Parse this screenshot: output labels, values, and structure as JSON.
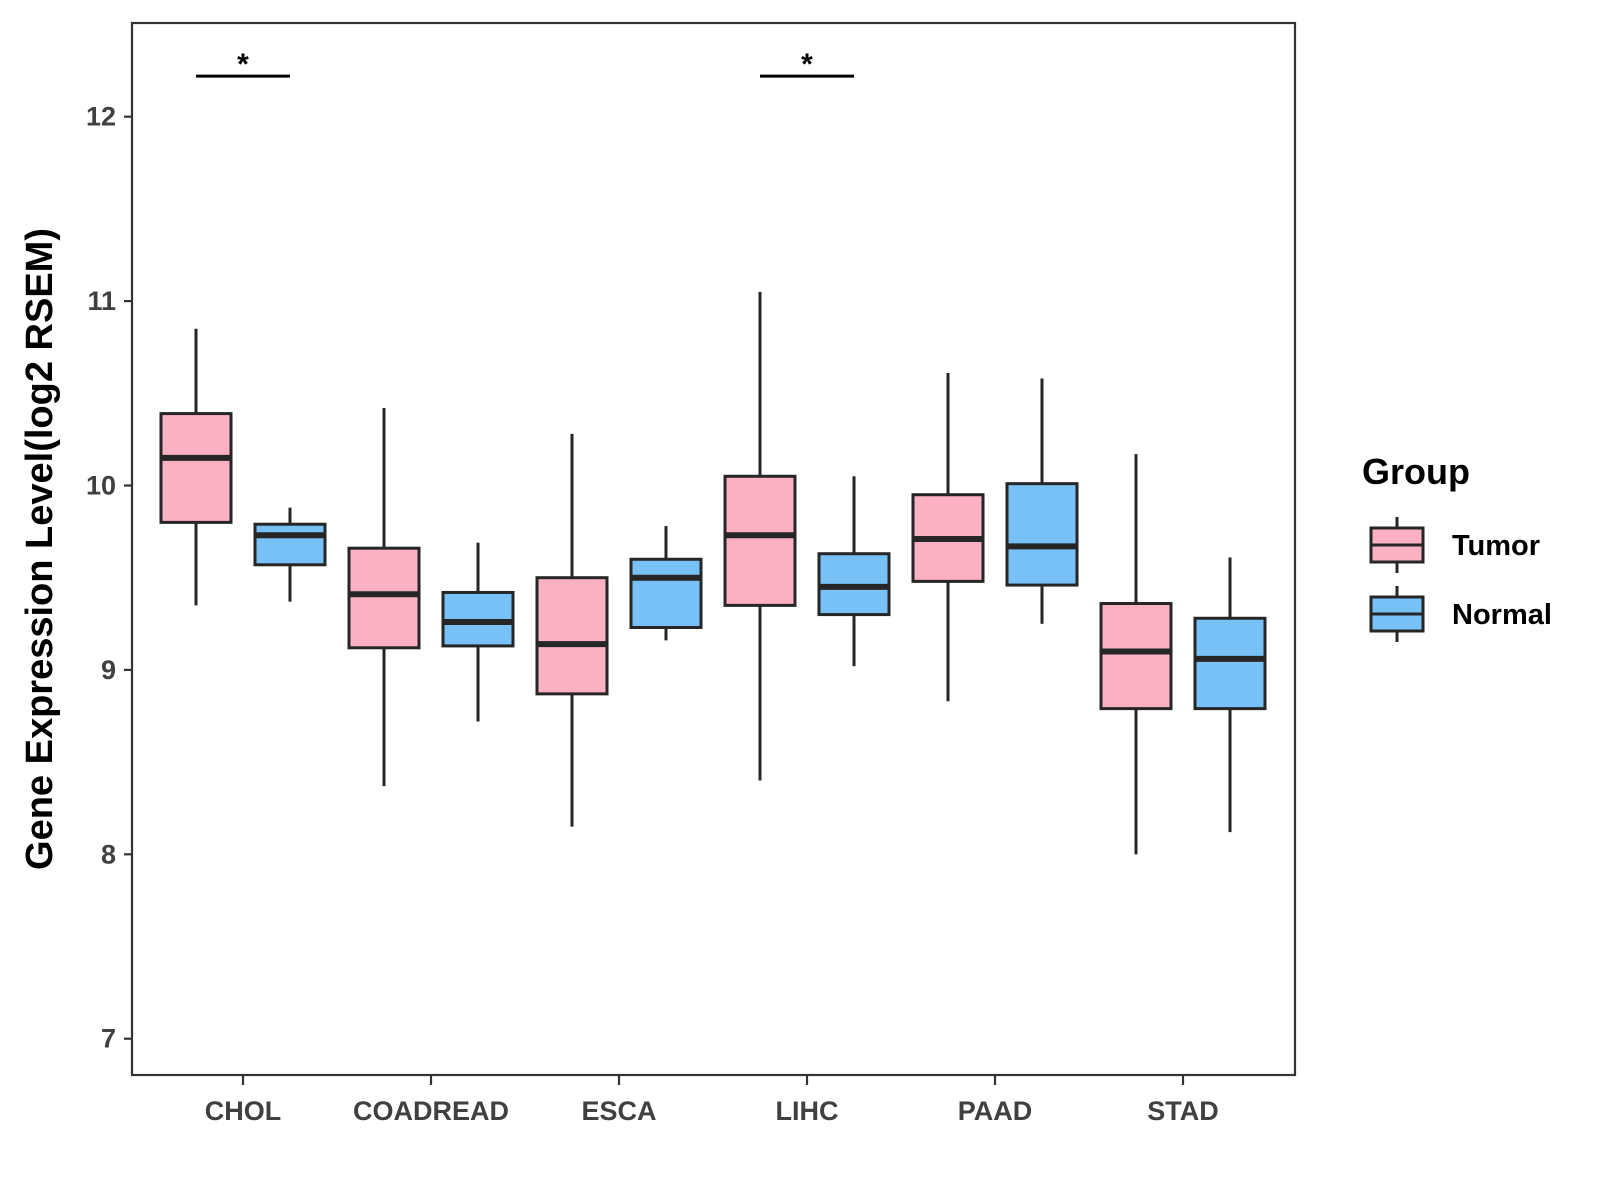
{
  "chart_data": {
    "type": "boxplot",
    "ylabel": "Gene Expression Level(log2 RSEM)",
    "xlabel": "",
    "ylim": [
      6.8,
      12.5
    ],
    "yticks": [
      7,
      8,
      9,
      10,
      11,
      12
    ],
    "categories": [
      "CHOL",
      "COADREAD",
      "ESCA",
      "LIHC",
      "PAAD",
      "STAD"
    ],
    "legend": {
      "title": "Group",
      "position": "right",
      "entries": [
        {
          "name": "Tumor",
          "color": "#FBB1C3"
        },
        {
          "name": "Normal",
          "color": "#78C1F7"
        }
      ]
    },
    "series": [
      {
        "name": "Tumor",
        "color": "#FBB1C3",
        "boxes": [
          {
            "min": 9.35,
            "q1": 9.8,
            "median": 10.15,
            "q3": 10.39,
            "max": 10.85
          },
          {
            "min": 8.37,
            "q1": 9.12,
            "median": 9.41,
            "q3": 9.66,
            "max": 10.42
          },
          {
            "min": 8.15,
            "q1": 8.87,
            "median": 9.14,
            "q3": 9.5,
            "max": 10.28
          },
          {
            "min": 8.4,
            "q1": 9.35,
            "median": 9.73,
            "q3": 10.05,
            "max": 11.05
          },
          {
            "min": 8.83,
            "q1": 9.48,
            "median": 9.71,
            "q3": 9.95,
            "max": 10.61
          },
          {
            "min": 8.0,
            "q1": 8.79,
            "median": 9.1,
            "q3": 9.36,
            "max": 10.17
          }
        ]
      },
      {
        "name": "Normal",
        "color": "#78C1F7",
        "boxes": [
          {
            "min": 9.37,
            "q1": 9.57,
            "median": 9.73,
            "q3": 9.79,
            "max": 9.88
          },
          {
            "min": 8.72,
            "q1": 9.13,
            "median": 9.26,
            "q3": 9.42,
            "max": 9.69
          },
          {
            "min": 9.16,
            "q1": 9.23,
            "median": 9.5,
            "q3": 9.6,
            "max": 9.78
          },
          {
            "min": 9.02,
            "q1": 9.3,
            "median": 9.45,
            "q3": 9.63,
            "max": 10.05
          },
          {
            "min": 9.25,
            "q1": 9.46,
            "median": 9.67,
            "q3": 10.01,
            "max": 10.58
          },
          {
            "min": 8.12,
            "q1": 8.79,
            "median": 9.06,
            "q3": 9.28,
            "max": 9.61
          }
        ]
      }
    ],
    "annotations": [
      {
        "category": "CHOL",
        "label": "*",
        "y": 12.22
      },
      {
        "category": "LIHC",
        "label": "*",
        "y": 12.22
      }
    ]
  }
}
